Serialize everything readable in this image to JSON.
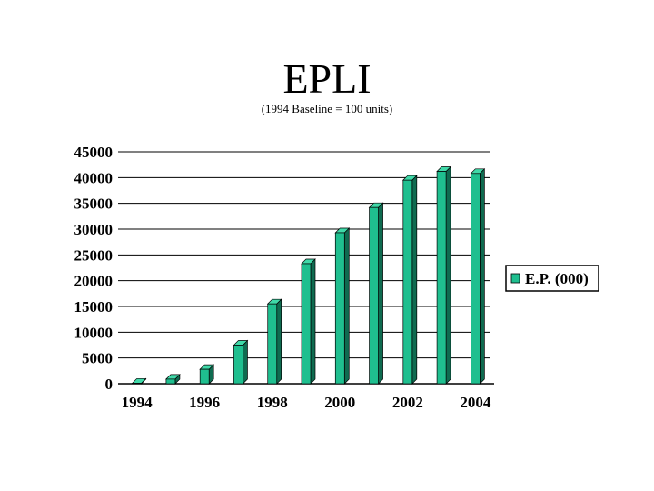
{
  "chart_data": {
    "type": "bar",
    "title": "EPLI",
    "subtitle": "(1994 Baseline = 100 units)",
    "categories": [
      "1994",
      "1995",
      "1996",
      "1997",
      "1998",
      "1999",
      "2000",
      "2001",
      "2002",
      "2003",
      "2004"
    ],
    "x_tick_labels": [
      "1994",
      "1996",
      "1998",
      "2000",
      "2002",
      "2004"
    ],
    "series": [
      {
        "name": "E.P. (000)",
        "values": [
          100,
          900,
          2800,
          7500,
          15500,
          23300,
          29300,
          34200,
          39500,
          41200,
          40800
        ]
      }
    ],
    "ylim": [
      0,
      45000
    ],
    "y_ticks": [
      0,
      5000,
      10000,
      15000,
      20000,
      25000,
      30000,
      35000,
      40000,
      45000
    ],
    "grid": true,
    "legend": "right",
    "colors": {
      "bar_front": "#1fbf8f",
      "bar_top": "#3fd9a8",
      "bar_side": "#0f6b50",
      "grid": "#000000"
    }
  }
}
